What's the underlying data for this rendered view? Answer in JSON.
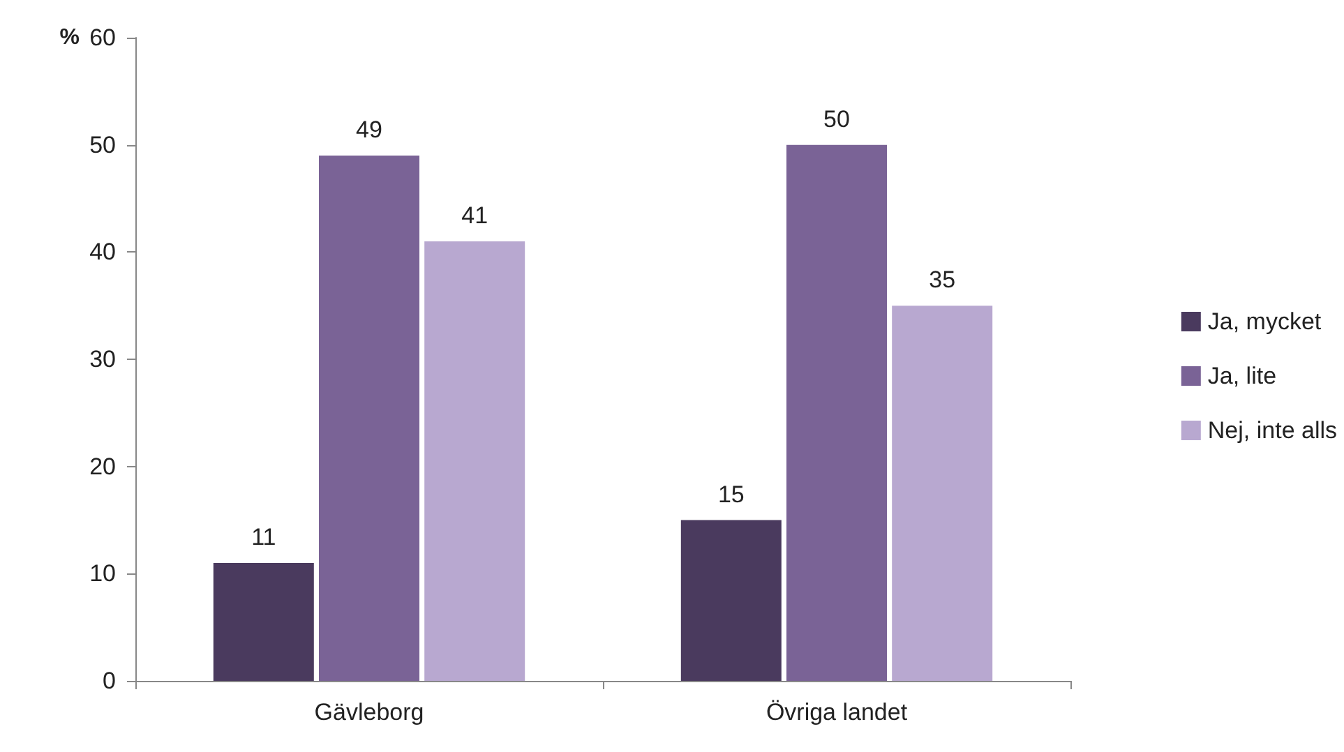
{
  "chart_data": {
    "type": "bar",
    "ylabel": "%",
    "categories": [
      "Gävleborg",
      "Övriga landet"
    ],
    "series": [
      {
        "name": "Ja, mycket",
        "color": "#4a3a5e",
        "values": [
          11,
          15
        ]
      },
      {
        "name": "Ja, lite",
        "color": "#7a6396",
        "values": [
          49,
          50
        ]
      },
      {
        "name": "Nej, inte alls",
        "color": "#b8a8d0",
        "values": [
          41,
          35
        ]
      }
    ],
    "ylim": [
      0,
      60
    ],
    "yticks": [
      0,
      10,
      20,
      30,
      40,
      50,
      60
    ],
    "data_labels": true,
    "legend": "right",
    "grid": false
  }
}
